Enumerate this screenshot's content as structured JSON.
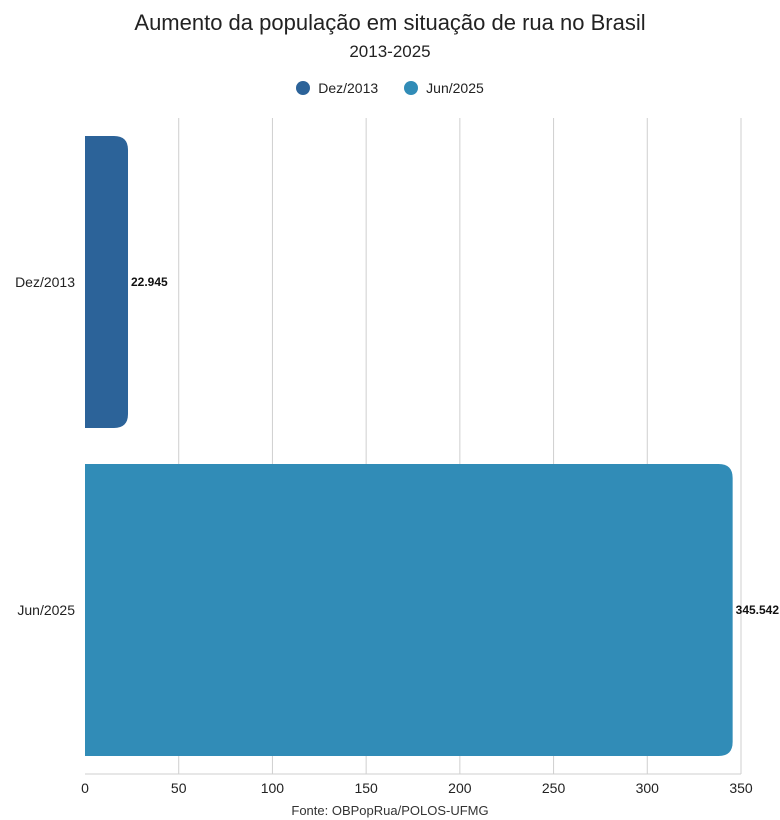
{
  "chart_data": {
    "type": "bar",
    "orientation": "horizontal",
    "title": "Aumento da população em situação de rua no Brasil",
    "subtitle": "2013-2025",
    "categories": [
      "Dez/2013",
      "Jun/2025"
    ],
    "values": [
      22.945,
      345.542
    ],
    "value_labels": [
      "22.945",
      "345.542"
    ],
    "colors": [
      "#2c6399",
      "#318cb7"
    ],
    "legend": [
      {
        "label": "Dez/2013",
        "color": "#2c6399"
      },
      {
        "label": "Jun/2025",
        "color": "#318cb7"
      }
    ],
    "legend_position": "top-center",
    "xlim": [
      0,
      350
    ],
    "xticks": [
      0,
      50,
      100,
      150,
      200,
      250,
      300,
      350
    ],
    "grid": true,
    "source": "Fonte: OBPopRua/POLOS-UFMG"
  }
}
